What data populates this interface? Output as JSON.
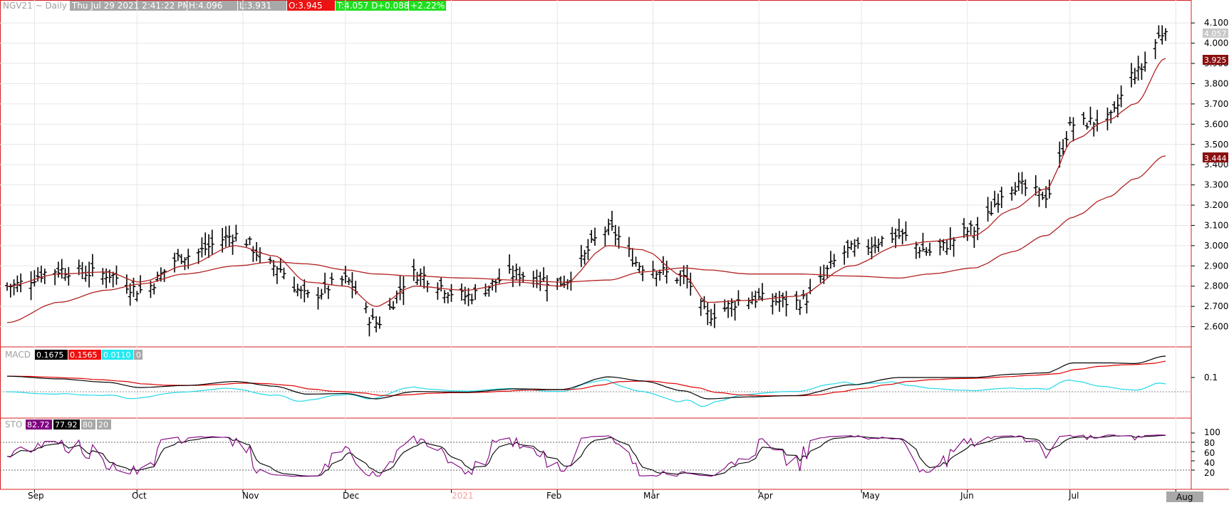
{
  "header": {
    "symbol": "NGV21 ~ Daily",
    "timestamp": "Thu Jul 29 2021 2:41:22 PM",
    "high": "H:4.096",
    "low": "L:3.931",
    "open": "O:3.945",
    "last": "T:4.057 D",
    "change": "+0.088",
    "change_pct": "+2.22%"
  },
  "colors": {
    "price_bars": "#000000",
    "ma_fast": "#b22222",
    "ma_slow": "#b22222",
    "macd_line": "#000000",
    "macd_signal": "#e00000",
    "macd_hist": "#22d8e8",
    "sto_k": "#800080",
    "sto_d": "#000000",
    "frame": "#d42020",
    "grid": "#e6e6e6"
  },
  "price_labels": {
    "last": "4.057",
    "ma_fast": "3.925",
    "ma_slow": "3.444"
  },
  "macd": {
    "label": "MACD",
    "values": [
      "0.1675",
      "0.1565",
      "0.0110",
      "0"
    ],
    "axis_ticks": [
      "0.1"
    ]
  },
  "sto": {
    "label": "STO",
    "values": [
      "82.72",
      "77.92",
      "80",
      "20"
    ],
    "axis_ticks": [
      "100",
      "80",
      "60",
      "40",
      "20"
    ]
  },
  "x_axis": {
    "months": [
      "Sep",
      "Oct",
      "Nov",
      "Dec",
      "2021",
      "Feb",
      "Mar",
      "Apr",
      "May",
      "Jun",
      "Jul"
    ],
    "current": "Aug"
  },
  "chart_data": {
    "type": "line",
    "title": "NGV21 ~ Daily",
    "ylim": [
      2.5,
      4.15
    ],
    "y_ticks": [
      "2.600",
      "2.700",
      "2.800",
      "2.900",
      "3.000",
      "3.100",
      "3.200",
      "3.300",
      "3.400",
      "3.500",
      "3.600",
      "3.700",
      "3.800",
      "3.900",
      "4.000",
      "4.100"
    ],
    "grid": true,
    "x": [
      "2020-08-24",
      "2020-09-08",
      "2020-09-22",
      "2020-10-02",
      "2020-10-15",
      "2020-10-30",
      "2020-11-10",
      "2020-11-20",
      "2020-12-01",
      "2020-12-10",
      "2020-12-21",
      "2021-01-05",
      "2021-01-20",
      "2021-02-02",
      "2021-02-16",
      "2021-02-26",
      "2021-03-10",
      "2021-03-17",
      "2021-03-29",
      "2021-04-12",
      "2021-04-28",
      "2021-05-12",
      "2021-05-21",
      "2021-06-03",
      "2021-06-14",
      "2021-06-24",
      "2021-07-02",
      "2021-07-12",
      "2021-07-20",
      "2021-07-29"
    ],
    "series": [
      {
        "name": "NGV21",
        "values": [
          2.8,
          2.88,
          2.86,
          2.78,
          2.95,
          3.05,
          2.9,
          2.75,
          2.83,
          2.62,
          2.86,
          2.75,
          2.86,
          2.82,
          3.08,
          2.9,
          2.84,
          2.66,
          2.74,
          2.72,
          2.98,
          3.05,
          2.97,
          3.08,
          3.3,
          3.25,
          3.6,
          3.62,
          3.85,
          4.057
        ]
      },
      {
        "values": [
          2.8,
          2.86,
          2.87,
          2.82,
          2.9,
          3.0,
          2.95,
          2.82,
          2.8,
          2.7,
          2.8,
          2.78,
          2.82,
          2.8,
          3.0,
          2.98,
          2.85,
          2.72,
          2.73,
          2.75,
          2.9,
          3.0,
          3.02,
          3.05,
          3.18,
          3.28,
          3.52,
          3.62,
          3.7,
          3.925
        ]
      },
      {
        "values": [
          2.62,
          2.72,
          2.78,
          2.81,
          2.86,
          2.9,
          2.92,
          2.91,
          2.88,
          2.86,
          2.85,
          2.84,
          2.83,
          2.82,
          2.83,
          2.87,
          2.89,
          2.88,
          2.86,
          2.86,
          2.85,
          2.84,
          2.86,
          2.89,
          2.97,
          3.05,
          3.14,
          3.24,
          3.33,
          3.444
        ]
      }
    ]
  }
}
